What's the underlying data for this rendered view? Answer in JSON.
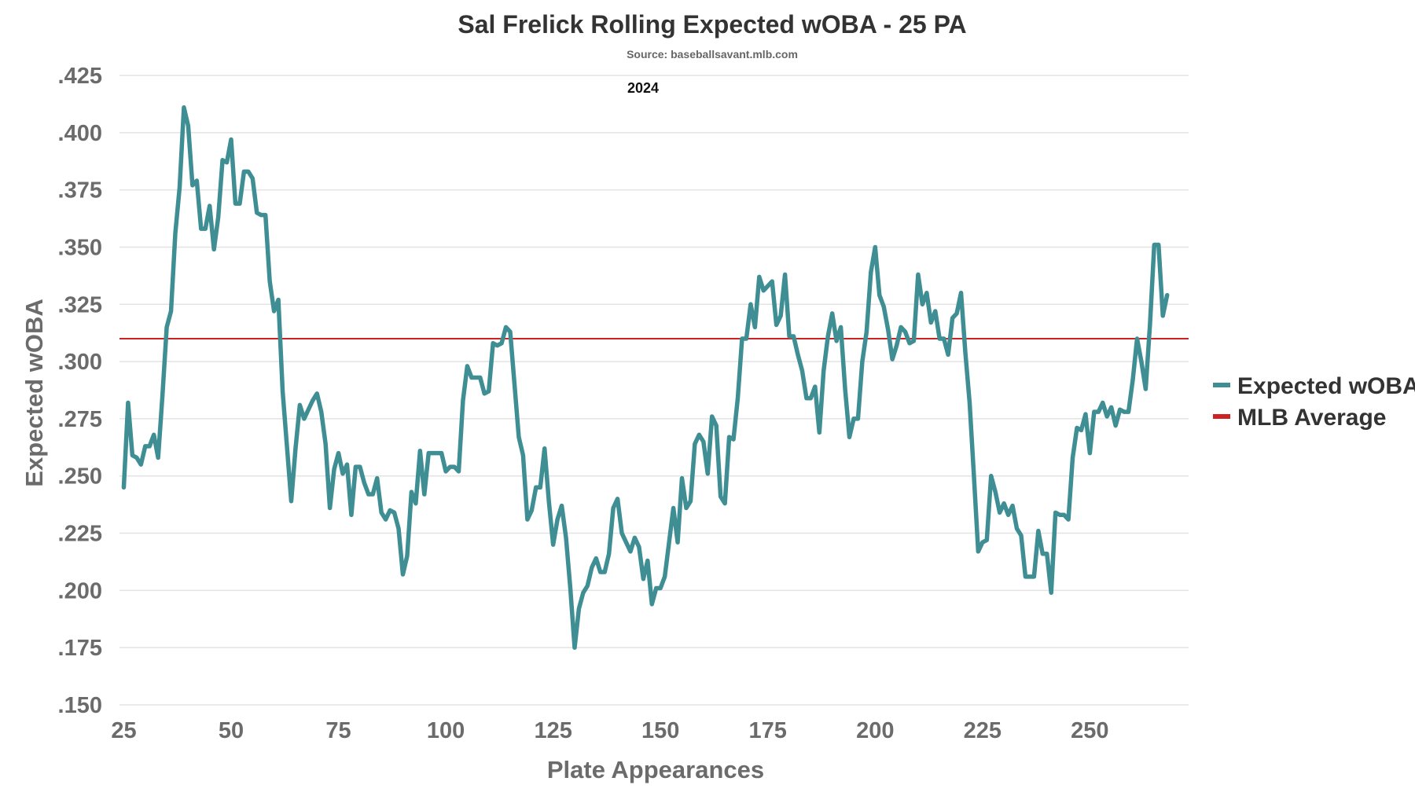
{
  "colors": {
    "series_line": "#3e8e94",
    "average_line": "#cc2222",
    "grid": "#e3e3e3",
    "axis_text": "#6b6b6b",
    "title_text": "#333333",
    "background": "#ffffff"
  },
  "chart_data": {
    "type": "line",
    "title": "Sal Frelick Rolling Expected wOBA - 25 PA",
    "subtitle": "Source: baseballsavant.mlb.com",
    "annotation": "2024",
    "xlabel": "Plate Appearances",
    "ylabel": "Expected wOBA",
    "xlim": [
      24,
      273
    ],
    "ylim": [
      0.15,
      0.425
    ],
    "x_ticks": [
      25,
      50,
      75,
      100,
      125,
      150,
      175,
      200,
      225,
      250
    ],
    "x_tick_labels": [
      "25",
      "50",
      "75",
      "100",
      "125",
      "150",
      "175",
      "200",
      "225",
      "250"
    ],
    "y_ticks": [
      0.15,
      0.175,
      0.2,
      0.225,
      0.25,
      0.275,
      0.3,
      0.325,
      0.35,
      0.375,
      0.4,
      0.425
    ],
    "y_tick_labels": [
      ".150",
      ".175",
      ".200",
      ".225",
      ".250",
      ".275",
      ".300",
      ".325",
      ".350",
      ".375",
      ".400",
      ".425"
    ],
    "grid": "horizontal",
    "legend_position": "right",
    "legend": [
      {
        "name": "Expected wOBA",
        "color": "#3e8e94"
      },
      {
        "name": "MLB Average",
        "color": "#cc2222"
      }
    ],
    "reference_line": {
      "name": "MLB Average",
      "value": 0.31
    },
    "series": [
      {
        "name": "Expected wOBA",
        "x": [
          25,
          26,
          27,
          28,
          29,
          30,
          31,
          32,
          33,
          34,
          35,
          36,
          37,
          38,
          39,
          40,
          41,
          42,
          43,
          44,
          45,
          46,
          47,
          48,
          49,
          50,
          51,
          52,
          53,
          54,
          55,
          56,
          57,
          58,
          59,
          60,
          61,
          62,
          63,
          64,
          65,
          66,
          67,
          68,
          69,
          70,
          71,
          72,
          73,
          74,
          75,
          76,
          77,
          78,
          79,
          80,
          81,
          82,
          83,
          84,
          85,
          86,
          87,
          88,
          89,
          90,
          91,
          92,
          93,
          94,
          95,
          96,
          97,
          98,
          99,
          100,
          101,
          102,
          103,
          104,
          105,
          106,
          107,
          108,
          109,
          110,
          111,
          112,
          113,
          114,
          115,
          116,
          117,
          118,
          119,
          120,
          121,
          122,
          123,
          124,
          125,
          126,
          127,
          128,
          129,
          130,
          131,
          132,
          133,
          134,
          135,
          136,
          137,
          138,
          139,
          140,
          141,
          142,
          143,
          144,
          145,
          146,
          147,
          148,
          149,
          150,
          151,
          152,
          153,
          154,
          155,
          156,
          157,
          158,
          159,
          160,
          161,
          162,
          163,
          164,
          165,
          166,
          167,
          168,
          169,
          170,
          171,
          172,
          173,
          174,
          175,
          176,
          177,
          178,
          179,
          180,
          181,
          182,
          183,
          184,
          185,
          186,
          187,
          188,
          189,
          190,
          191,
          192,
          193,
          194,
          195,
          196,
          197,
          198,
          199,
          200,
          201,
          202,
          203,
          204,
          205,
          206,
          207,
          208,
          209,
          210,
          211,
          212,
          213,
          214,
          215,
          216,
          217,
          218,
          219,
          220,
          221,
          222,
          223,
          224,
          225,
          226,
          227,
          228,
          229,
          230,
          231,
          232,
          233,
          234,
          235,
          236,
          237,
          238,
          239,
          240,
          241,
          242,
          243,
          244,
          245,
          246,
          247,
          248,
          249,
          250,
          251,
          252,
          253,
          254,
          255,
          256,
          257,
          258,
          259,
          260,
          261,
          262,
          263,
          264,
          265,
          266,
          267,
          268
        ],
        "values": [
          0.245,
          0.282,
          0.259,
          0.258,
          0.255,
          0.263,
          0.263,
          0.268,
          0.258,
          0.285,
          0.315,
          0.322,
          0.356,
          0.376,
          0.411,
          0.403,
          0.377,
          0.379,
          0.358,
          0.358,
          0.368,
          0.349,
          0.363,
          0.388,
          0.387,
          0.397,
          0.369,
          0.369,
          0.383,
          0.383,
          0.38,
          0.365,
          0.364,
          0.364,
          0.335,
          0.322,
          0.327,
          0.287,
          0.263,
          0.239,
          0.262,
          0.281,
          0.275,
          0.279,
          0.283,
          0.286,
          0.278,
          0.264,
          0.236,
          0.253,
          0.26,
          0.251,
          0.255,
          0.233,
          0.254,
          0.254,
          0.247,
          0.242,
          0.242,
          0.249,
          0.234,
          0.231,
          0.235,
          0.234,
          0.227,
          0.207,
          0.215,
          0.243,
          0.238,
          0.261,
          0.242,
          0.26,
          0.26,
          0.26,
          0.26,
          0.252,
          0.254,
          0.254,
          0.252,
          0.283,
          0.298,
          0.293,
          0.293,
          0.293,
          0.286,
          0.287,
          0.308,
          0.307,
          0.308,
          0.315,
          0.313,
          0.29,
          0.267,
          0.259,
          0.231,
          0.235,
          0.245,
          0.245,
          0.262,
          0.239,
          0.22,
          0.231,
          0.237,
          0.223,
          0.201,
          0.175,
          0.192,
          0.199,
          0.202,
          0.21,
          0.214,
          0.208,
          0.208,
          0.216,
          0.236,
          0.24,
          0.225,
          0.221,
          0.217,
          0.223,
          0.219,
          0.205,
          0.213,
          0.194,
          0.201,
          0.201,
          0.206,
          0.221,
          0.236,
          0.221,
          0.249,
          0.236,
          0.239,
          0.264,
          0.268,
          0.265,
          0.251,
          0.276,
          0.272,
          0.241,
          0.238,
          0.267,
          0.266,
          0.284,
          0.31,
          0.31,
          0.325,
          0.315,
          0.337,
          0.331,
          0.333,
          0.335,
          0.316,
          0.32,
          0.338,
          0.311,
          0.311,
          0.303,
          0.296,
          0.284,
          0.284,
          0.289,
          0.269,
          0.296,
          0.311,
          0.321,
          0.309,
          0.315,
          0.288,
          0.267,
          0.275,
          0.275,
          0.3,
          0.313,
          0.339,
          0.35,
          0.329,
          0.324,
          0.314,
          0.301,
          0.307,
          0.315,
          0.313,
          0.308,
          0.309,
          0.338,
          0.325,
          0.33,
          0.317,
          0.322,
          0.31,
          0.31,
          0.303,
          0.319,
          0.321,
          0.33,
          0.304,
          0.282,
          0.25,
          0.217,
          0.221,
          0.222,
          0.25,
          0.243,
          0.234,
          0.238,
          0.233,
          0.237,
          0.227,
          0.224,
          0.206,
          0.206,
          0.206,
          0.226,
          0.216,
          0.216,
          0.199,
          0.234,
          0.233,
          0.233,
          0.231,
          0.258,
          0.271,
          0.27,
          0.277,
          0.26,
          0.278,
          0.278,
          0.282,
          0.276,
          0.28,
          0.272,
          0.279,
          0.278,
          0.278,
          0.292,
          0.31,
          0.3,
          0.288,
          0.316,
          0.351,
          0.351,
          0.32,
          0.329
        ]
      }
    ]
  }
}
